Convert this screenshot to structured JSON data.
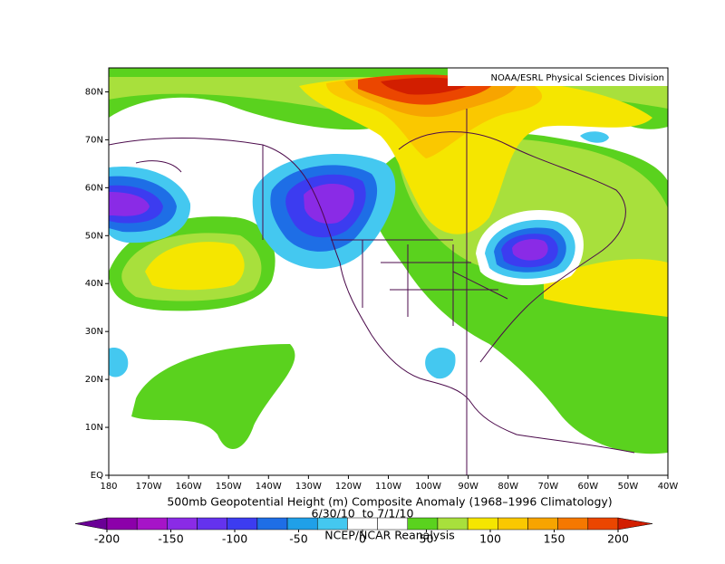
{
  "header": {
    "credit": "NOAA/ESRL Physical Sciences Division"
  },
  "map": {
    "lat_labels": [
      "80N",
      "70N",
      "60N",
      "50N",
      "40N",
      "30N",
      "20N",
      "10N",
      "EQ"
    ],
    "lon_labels": [
      "180",
      "170W",
      "160W",
      "150W",
      "140W",
      "130W",
      "120W",
      "110W",
      "100W",
      "90W",
      "80W",
      "70W",
      "60W",
      "50W",
      "40W"
    ]
  },
  "footer": {
    "title": "500mb Geopotential Height (m) Composite Anomaly (1968–1996 Climatology)",
    "dates": "6/30/10  to 7/1/10",
    "source": "NCEP/NCAR Reanalysis"
  },
  "colorbar": {
    "ticks": [
      -200,
      -150,
      -100,
      -50,
      0,
      50,
      100,
      150,
      200
    ],
    "colors": [
      "#6a0096",
      "#8c00aa",
      "#a614c8",
      "#8a2be6",
      "#6432ee",
      "#3c3cf0",
      "#1e6ee6",
      "#20a0e8",
      "#44c8f0",
      "#ffffff",
      "#ffffff",
      "#5ad21e",
      "#a8e03c",
      "#f5e600",
      "#fac800",
      "#f7a400",
      "#f57800",
      "#eb4600",
      "#d21e00"
    ]
  }
}
